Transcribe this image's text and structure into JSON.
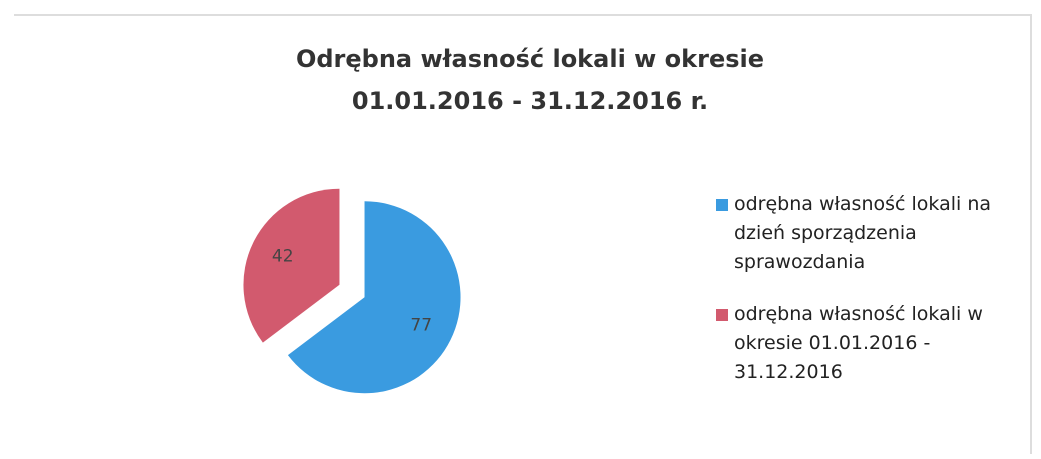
{
  "chart_data": {
    "type": "pie",
    "title": "Odrębna własność lokali w okresie 01.01.2016 - 31.12.2016 r.",
    "categories": [
      "odrębna własność lokali na dzień sporządzenia sprawozdania",
      "odrębna własność lokali w okresie 01.01.2016 - 31.12.2016"
    ],
    "values": [
      77,
      42
    ],
    "colors": [
      "#3a9be0",
      "#d25a6e"
    ],
    "legend": "right"
  }
}
